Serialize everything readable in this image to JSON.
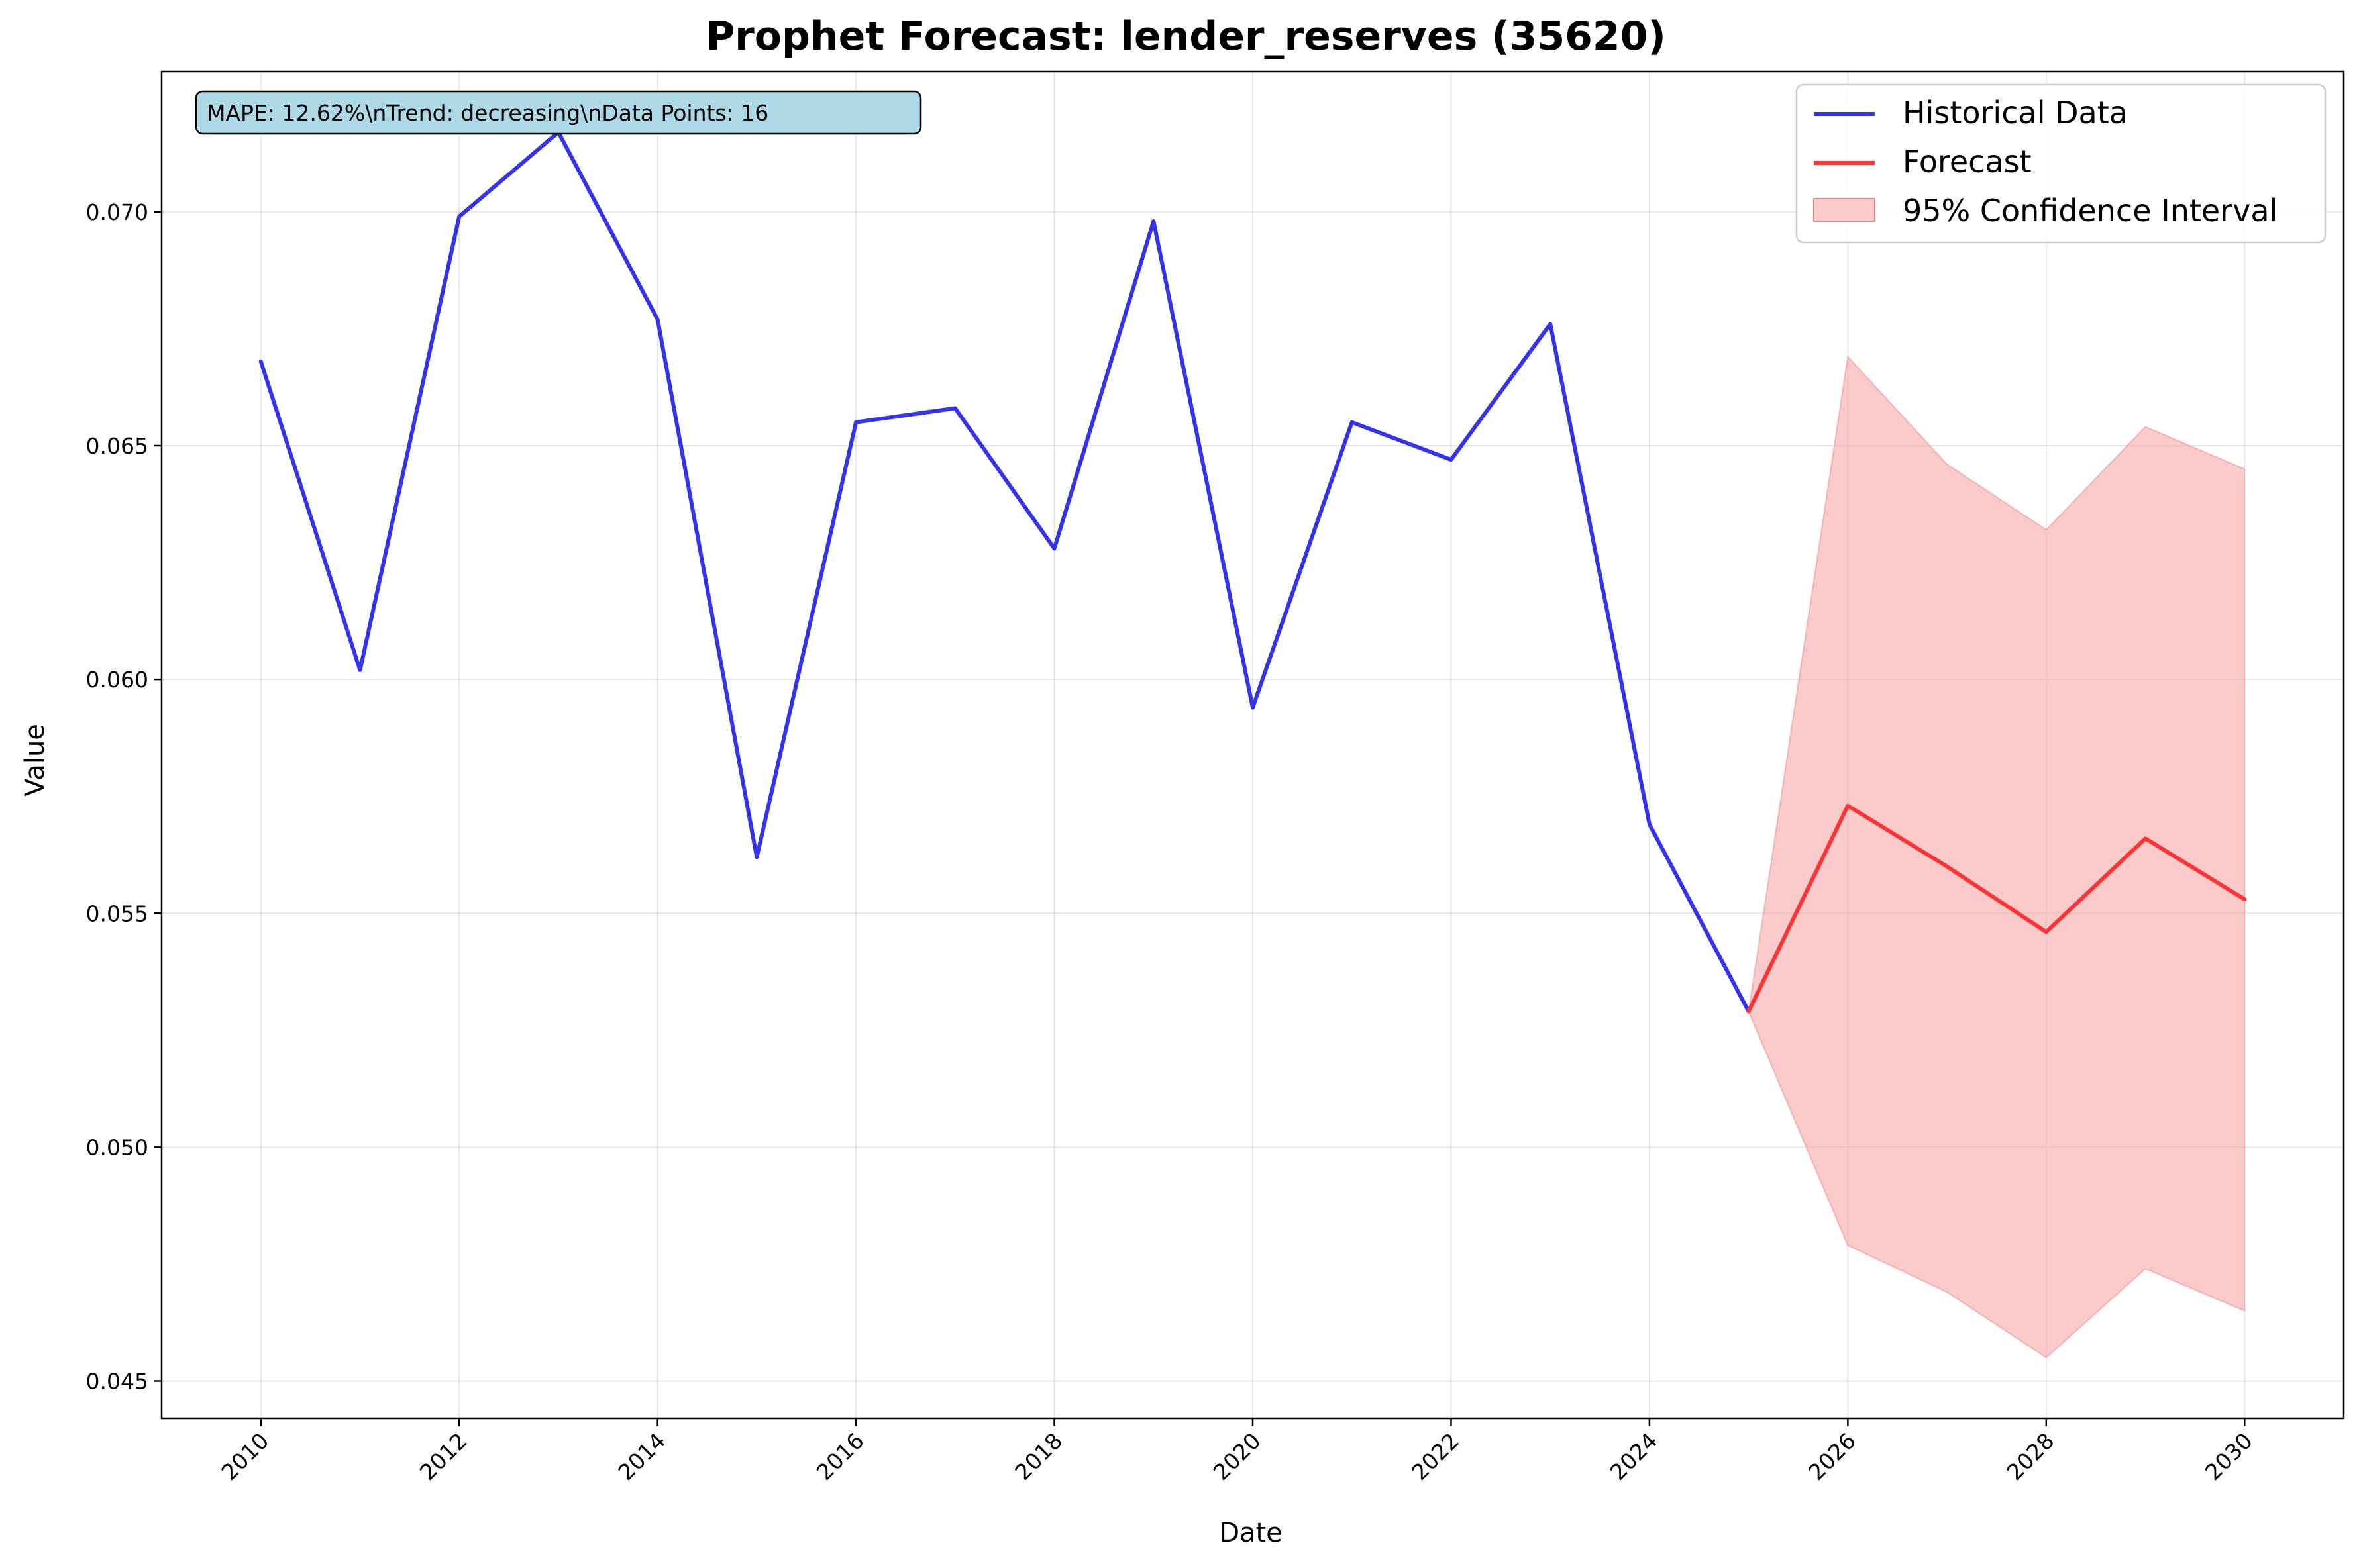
{
  "chart_data": {
    "type": "line",
    "title": "Prophet Forecast: lender_reserves (35620)",
    "xlabel": "Date",
    "ylabel": "Value",
    "xlim": [
      2009,
      2031
    ],
    "ylim": [
      0.0442,
      0.073
    ],
    "x_ticks": [
      2010,
      2012,
      2014,
      2016,
      2018,
      2020,
      2022,
      2024,
      2026,
      2028,
      2030
    ],
    "y_ticks": [
      0.045,
      0.05,
      0.055,
      0.06,
      0.065,
      0.07
    ],
    "y_tick_labels": [
      "0.045",
      "0.050",
      "0.055",
      "0.060",
      "0.065",
      "0.070"
    ],
    "grid": true,
    "legend_position": "top-right",
    "annotation": "MAPE: 12.62%\\nTrend: decreasing\\nData Points: 16",
    "annotation_color": "#add8e6",
    "series": [
      {
        "name": "Historical Data",
        "color": "#3333ee",
        "x": [
          2010,
          2011,
          2012,
          2013,
          2014,
          2015,
          2016,
          2017,
          2018,
          2019,
          2020,
          2021,
          2022,
          2023,
          2024,
          2025
        ],
        "values": [
          0.0668,
          0.0602,
          0.0699,
          0.0717,
          0.0677,
          0.0562,
          0.0655,
          0.0658,
          0.0628,
          0.0698,
          0.0594,
          0.0655,
          0.0647,
          0.0676,
          0.0569,
          0.0529
        ]
      },
      {
        "name": "Forecast",
        "color": "#ff3333",
        "x": [
          2025,
          2026,
          2027,
          2028,
          2029,
          2030
        ],
        "values": [
          0.0529,
          0.0573,
          0.056,
          0.0546,
          0.0566,
          0.0553
        ]
      },
      {
        "name": "95% Confidence Interval",
        "color": "#f8a8a8",
        "type": "band",
        "x": [
          2025,
          2026,
          2027,
          2028,
          2029,
          2030
        ],
        "lower": [
          0.0529,
          0.0479,
          0.0469,
          0.0455,
          0.0474,
          0.0465
        ],
        "upper": [
          0.0529,
          0.0669,
          0.0646,
          0.0632,
          0.0654,
          0.0645
        ]
      }
    ]
  }
}
